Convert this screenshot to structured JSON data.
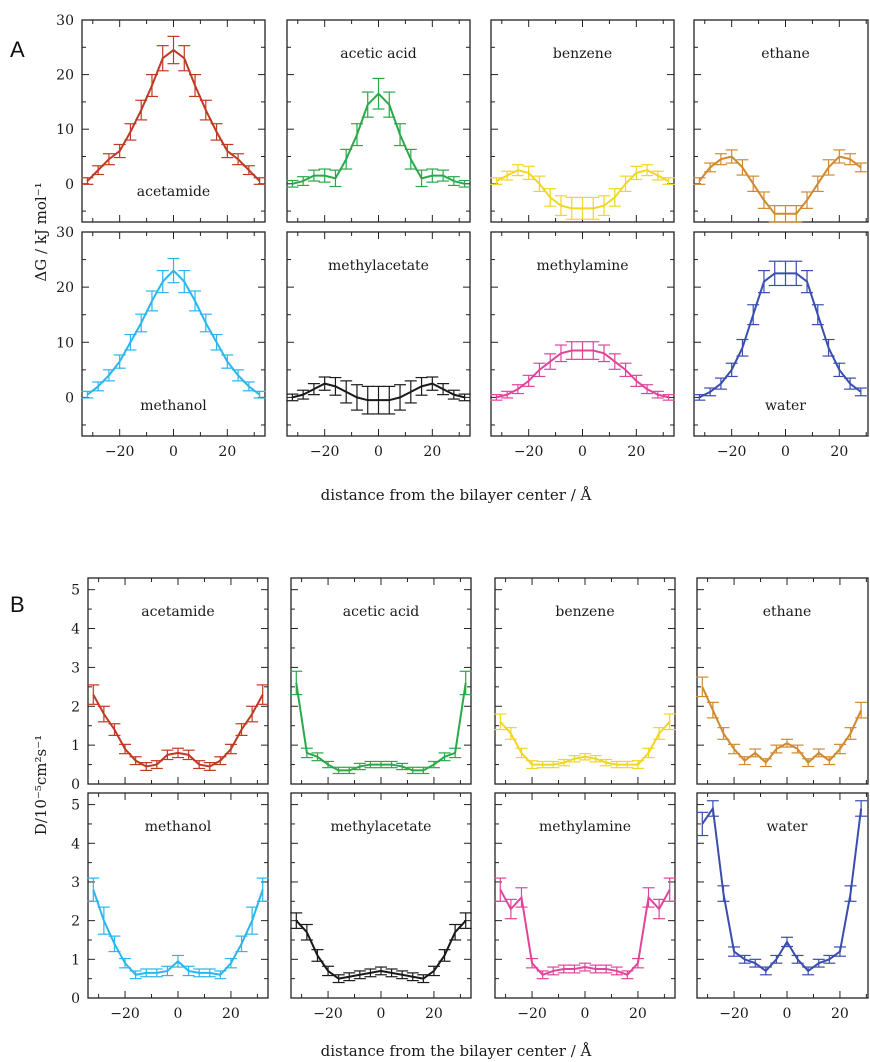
{
  "figure": {
    "panel_labels": [
      "A",
      "B"
    ],
    "xlabel_top": "distance from the bilayer center / Å",
    "xlabel_bottom": "distance from the bilayer center / Å",
    "ylabel_top": "ΔG / kJ mol⁻¹",
    "ylabel_bottom": "D/10⁻⁵cm²s⁻¹"
  },
  "chart_data": [
    {
      "type": "line",
      "panel": "A",
      "xlabel": "distance from the bilayer center / Å",
      "ylabel": "ΔG / kJ mol⁻¹",
      "xlim": [
        -34,
        34
      ],
      "ylim": [
        -7,
        30
      ],
      "xticks": [
        -20,
        0,
        20
      ],
      "yticks": [
        0,
        10,
        20,
        30
      ],
      "x": [
        -32,
        -28,
        -24,
        -20,
        -16,
        -12,
        -8,
        -4,
        0,
        4,
        8,
        12,
        16,
        20,
        24,
        28,
        32
      ],
      "series": [
        {
          "name": "acetamide",
          "color": "#bf3a22",
          "values": [
            0.5,
            2.5,
            4.5,
            6,
            9.5,
            13.5,
            18,
            23,
            24.5,
            23,
            18,
            13.5,
            9.5,
            6,
            4.5,
            2.5,
            0.5
          ],
          "err": [
            0.6,
            0.8,
            1,
            1.2,
            1.5,
            1.8,
            2,
            2.3,
            2.5,
            2.3,
            2,
            1.8,
            1.5,
            1.2,
            1,
            0.8,
            0.6
          ]
        },
        {
          "name": "acetic acid",
          "color": "#29a94a",
          "values": [
            0,
            0.5,
            1.5,
            1.5,
            1,
            4.5,
            9,
            14.5,
            16.5,
            14.5,
            9,
            4.5,
            1,
            1.5,
            1.5,
            0.5,
            0
          ],
          "err": [
            0.6,
            0.8,
            1,
            1.2,
            1.5,
            1.8,
            2,
            2.3,
            2.8,
            2.3,
            2,
            1.8,
            1.5,
            1.2,
            1,
            0.8,
            0.6
          ]
        },
        {
          "name": "benzene",
          "color": "#f2d624",
          "values": [
            0.5,
            1.5,
            2.5,
            2,
            0,
            -2.5,
            -4,
            -4.5,
            -4.5,
            -4.5,
            -4,
            -2.5,
            0,
            2,
            2.5,
            1.5,
            0.5
          ],
          "err": [
            0.6,
            0.8,
            1,
            1.2,
            1.4,
            1.6,
            1.8,
            2,
            2,
            2,
            1.8,
            1.6,
            1.4,
            1.2,
            1,
            0.8,
            0.6
          ]
        },
        {
          "name": "ethane",
          "color": "#d08a30",
          "values": [
            0.5,
            3,
            4.5,
            5,
            3,
            0,
            -3,
            -5.5,
            -5.5,
            -5.5,
            -3,
            0,
            3,
            5,
            4.5,
            3,
            0.5
          ],
          "err": [
            0.6,
            0.8,
            1,
            1.2,
            1.4,
            1.4,
            1.5,
            1.5,
            1.5,
            1.5,
            1.5,
            1.4,
            1.4,
            1.2,
            1,
            0.8,
            0.6
          ]
        },
        {
          "name": "methanol",
          "color": "#2bb6ec",
          "values": [
            0.5,
            2,
            4,
            6.5,
            10,
            13.5,
            17.5,
            21,
            23,
            21,
            17.5,
            13.5,
            10,
            6.5,
            4,
            2,
            0.5
          ],
          "err": [
            0.6,
            0.8,
            1,
            1.2,
            1.4,
            1.6,
            1.8,
            2,
            2.2,
            2,
            1.8,
            1.6,
            1.4,
            1.2,
            1,
            0.8,
            0.6
          ]
        },
        {
          "name": "methylacetate",
          "color": "#1a1a1a",
          "values": [
            0,
            0.5,
            1.5,
            2.5,
            2,
            1,
            0,
            -0.5,
            -0.5,
            -0.5,
            0,
            1,
            2,
            2.5,
            1.5,
            0.5,
            0
          ],
          "err": [
            0.6,
            0.8,
            1,
            1.2,
            1.6,
            2,
            2.3,
            2.5,
            2.5,
            2.5,
            2.3,
            2,
            1.6,
            1.2,
            1,
            0.8,
            0.6
          ]
        },
        {
          "name": "methylamine",
          "color": "#e0459c",
          "values": [
            0,
            0.5,
            1.5,
            3,
            5,
            6.5,
            8,
            8.5,
            8.5,
            8.5,
            8,
            6.5,
            5,
            3,
            1.5,
            0.5,
            0
          ],
          "err": [
            0.5,
            0.6,
            0.8,
            1,
            1.2,
            1.4,
            1.5,
            1.6,
            1.6,
            1.6,
            1.5,
            1.4,
            1.2,
            1,
            0.8,
            0.6,
            0.5
          ]
        },
        {
          "name": "water",
          "color": "#3a4db0",
          "values": [
            0,
            1,
            2.5,
            5,
            9,
            15,
            21,
            22.5,
            22.5,
            22.5,
            21,
            15,
            9,
            5,
            2.5,
            1,
            0
          ],
          "err": [
            0.5,
            0.7,
            1,
            1.2,
            1.5,
            1.8,
            2,
            2.2,
            2.2,
            2.2,
            2,
            1.8,
            1.5,
            1.2,
            1,
            0.7,
            0.5
          ]
        }
      ]
    },
    {
      "type": "line",
      "panel": "B",
      "xlabel": "distance from the bilayer center / Å",
      "ylabel": "D/10⁻⁵cm²s⁻¹",
      "xlim": [
        -34,
        34
      ],
      "ylim": [
        0,
        5.3
      ],
      "xticks": [
        -20,
        0,
        20
      ],
      "yticks": [
        0,
        1,
        2,
        3,
        4,
        5
      ],
      "x": [
        -32,
        -28,
        -24,
        -20,
        -16,
        -12,
        -8,
        -4,
        0,
        4,
        8,
        12,
        16,
        20,
        24,
        28,
        32
      ],
      "series": [
        {
          "name": "acetamide",
          "color": "#bf3a22",
          "values": [
            2.3,
            1.8,
            1.4,
            0.9,
            0.6,
            0.45,
            0.5,
            0.75,
            0.8,
            0.75,
            0.5,
            0.45,
            0.6,
            0.9,
            1.4,
            1.8,
            2.3
          ],
          "err": [
            0.25,
            0.2,
            0.15,
            0.12,
            0.1,
            0.1,
            0.1,
            0.12,
            0.12,
            0.12,
            0.1,
            0.1,
            0.1,
            0.12,
            0.15,
            0.2,
            0.25
          ]
        },
        {
          "name": "acetic acid",
          "color": "#29a94a",
          "values": [
            2.6,
            0.8,
            0.7,
            0.5,
            0.35,
            0.35,
            0.45,
            0.5,
            0.5,
            0.5,
            0.45,
            0.35,
            0.35,
            0.5,
            0.7,
            0.8,
            2.6
          ],
          "err": [
            0.3,
            0.12,
            0.1,
            0.08,
            0.08,
            0.08,
            0.08,
            0.08,
            0.08,
            0.08,
            0.08,
            0.08,
            0.08,
            0.08,
            0.1,
            0.12,
            0.3
          ]
        },
        {
          "name": "benzene",
          "color": "#f2d624",
          "values": [
            1.6,
            1.3,
            0.8,
            0.5,
            0.5,
            0.5,
            0.55,
            0.65,
            0.7,
            0.65,
            0.55,
            0.5,
            0.5,
            0.5,
            0.8,
            1.3,
            1.6
          ],
          "err": [
            0.2,
            0.15,
            0.12,
            0.1,
            0.08,
            0.08,
            0.08,
            0.08,
            0.08,
            0.08,
            0.08,
            0.08,
            0.08,
            0.1,
            0.12,
            0.15,
            0.2
          ]
        },
        {
          "name": "ethane",
          "color": "#d08a30",
          "values": [
            2.5,
            1.9,
            1.3,
            0.9,
            0.6,
            0.8,
            0.55,
            0.9,
            1.05,
            0.9,
            0.55,
            0.8,
            0.6,
            0.9,
            1.3,
            1.9,
            2.5
          ],
          "err": [
            0.25,
            0.2,
            0.15,
            0.12,
            0.1,
            0.1,
            0.1,
            0.1,
            0.1,
            0.1,
            0.1,
            0.1,
            0.1,
            0.12,
            0.15,
            0.2,
            0.25
          ]
        },
        {
          "name": "methanol",
          "color": "#2bb6ec",
          "values": [
            2.8,
            2,
            1.4,
            0.9,
            0.6,
            0.65,
            0.65,
            0.7,
            0.95,
            0.7,
            0.65,
            0.65,
            0.6,
            0.9,
            1.4,
            2,
            2.8
          ],
          "err": [
            0.3,
            0.35,
            0.2,
            0.12,
            0.1,
            0.1,
            0.1,
            0.12,
            0.15,
            0.12,
            0.1,
            0.1,
            0.1,
            0.12,
            0.2,
            0.35,
            0.3
          ]
        },
        {
          "name": "methylacetate",
          "color": "#1a1a1a",
          "values": [
            2,
            1.7,
            1.1,
            0.7,
            0.5,
            0.55,
            0.6,
            0.65,
            0.7,
            0.65,
            0.6,
            0.55,
            0.5,
            0.7,
            1.1,
            1.7,
            2
          ],
          "err": [
            0.2,
            0.2,
            0.15,
            0.12,
            0.1,
            0.1,
            0.1,
            0.1,
            0.1,
            0.1,
            0.1,
            0.1,
            0.1,
            0.12,
            0.15,
            0.2,
            0.2
          ]
        },
        {
          "name": "methylamine",
          "color": "#e0459c",
          "values": [
            2.8,
            2.3,
            2.6,
            0.9,
            0.6,
            0.7,
            0.75,
            0.75,
            0.8,
            0.75,
            0.75,
            0.7,
            0.6,
            0.9,
            2.6,
            2.3,
            2.8
          ],
          "err": [
            0.3,
            0.25,
            0.25,
            0.12,
            0.1,
            0.1,
            0.1,
            0.1,
            0.1,
            0.1,
            0.1,
            0.1,
            0.1,
            0.12,
            0.25,
            0.25,
            0.3
          ]
        },
        {
          "name": "water",
          "color": "#3a4db0",
          "values": [
            4.5,
            4.9,
            2.7,
            1.2,
            1,
            0.9,
            0.7,
            1,
            1.45,
            1,
            0.7,
            0.9,
            1,
            1.2,
            2.7,
            4.9,
            4.5
          ],
          "err": [
            0.3,
            0.2,
            0.2,
            0.12,
            0.1,
            0.1,
            0.1,
            0.1,
            0.12,
            0.1,
            0.1,
            0.1,
            0.1,
            0.12,
            0.2,
            0.2,
            0.3
          ]
        }
      ]
    }
  ]
}
